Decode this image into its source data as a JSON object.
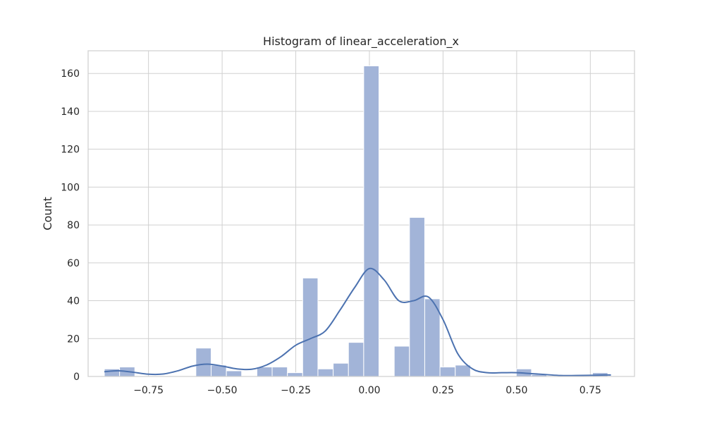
{
  "chart_data": {
    "type": "bar",
    "title": "Histogram of linear_acceleration_x",
    "xlabel": "",
    "ylabel": "Count",
    "xlim": [
      -0.955,
      0.9
    ],
    "ylim": [
      0,
      172
    ],
    "grid": true,
    "x_ticks": [
      -0.75,
      -0.5,
      -0.25,
      0.0,
      0.25,
      0.5,
      0.75
    ],
    "x_tick_labels": [
      "−0.75",
      "−0.50",
      "−0.25",
      "0.00",
      "0.25",
      "0.50",
      "0.75"
    ],
    "y_ticks": [
      0,
      20,
      40,
      60,
      80,
      100,
      120,
      140,
      160
    ],
    "y_tick_labels": [
      "0",
      "20",
      "40",
      "60",
      "80",
      "100",
      "120",
      "140",
      "160"
    ],
    "bin_start": -0.9,
    "bin_width": 0.0518,
    "counts": [
      4,
      5,
      0,
      0,
      0,
      0,
      15,
      6,
      3,
      0,
      5,
      5,
      2,
      52,
      4,
      7,
      18,
      164,
      0,
      16,
      84,
      41,
      5,
      6,
      0,
      0,
      0,
      4,
      1,
      0,
      0,
      0,
      2
    ],
    "kde": {
      "x": [
        -0.9,
        -0.85,
        -0.8,
        -0.75,
        -0.7,
        -0.65,
        -0.6,
        -0.55,
        -0.5,
        -0.45,
        -0.4,
        -0.35,
        -0.3,
        -0.25,
        -0.2,
        -0.15,
        -0.1,
        -0.05,
        0.0,
        0.05,
        0.1,
        0.15,
        0.2,
        0.25,
        0.3,
        0.35,
        0.4,
        0.45,
        0.5,
        0.55,
        0.6,
        0.65,
        0.7,
        0.75,
        0.8,
        0.82
      ],
      "y": [
        2.5,
        3,
        2.2,
        1.2,
        1.3,
        3,
        5.5,
        6.5,
        5.5,
        4,
        3.8,
        6,
        10.5,
        16.5,
        20,
        24,
        35,
        47,
        57,
        51,
        40,
        40,
        42,
        30,
        12,
        4,
        2,
        2,
        2,
        1.5,
        1,
        0.5,
        0.5,
        0.6,
        0.8,
        0.8
      ]
    },
    "colors": {
      "bar_fill": "#a2b4d8",
      "bar_stroke": "#ffffff",
      "kde_line": "#4c72b0",
      "grid": "#d0d0d0",
      "frame": "#d0d0d0"
    }
  }
}
